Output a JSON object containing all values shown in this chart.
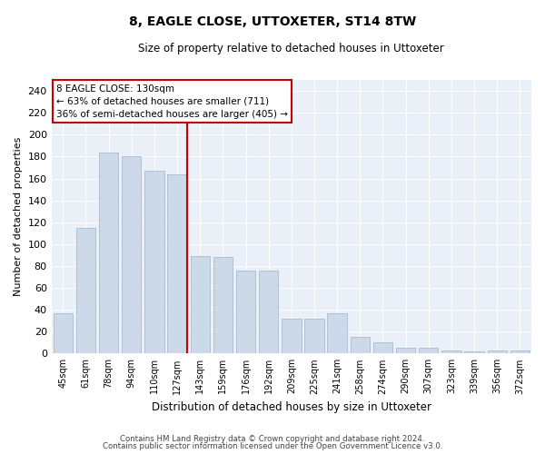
{
  "title1": "8, EAGLE CLOSE, UTTOXETER, ST14 8TW",
  "title2": "Size of property relative to detached houses in Uttoxeter",
  "xlabel": "Distribution of detached houses by size in Uttoxeter",
  "ylabel": "Number of detached properties",
  "categories": [
    "45sqm",
    "61sqm",
    "78sqm",
    "94sqm",
    "110sqm",
    "127sqm",
    "143sqm",
    "159sqm",
    "176sqm",
    "192sqm",
    "209sqm",
    "225sqm",
    "241sqm",
    "258sqm",
    "274sqm",
    "290sqm",
    "307sqm",
    "323sqm",
    "339sqm",
    "356sqm",
    "372sqm"
  ],
  "values": [
    37,
    115,
    184,
    180,
    167,
    164,
    89,
    88,
    76,
    76,
    32,
    32,
    37,
    15,
    10,
    5,
    5,
    3,
    2,
    3,
    3
  ],
  "bar_color": "#ccd9e8",
  "bar_edge_color": "#aabbcc",
  "highlight_label": "8 EAGLE CLOSE: 130sqm",
  "annotation_line1": "← 63% of detached houses are smaller (711)",
  "annotation_line2": "36% of semi-detached houses are larger (405) →",
  "annotation_box_color": "#ffffff",
  "annotation_box_edge": "#cc0000",
  "vline_color": "#cc0000",
  "vline_x": 5.42,
  "ylim": [
    0,
    250
  ],
  "yticks": [
    0,
    20,
    40,
    60,
    80,
    100,
    120,
    140,
    160,
    180,
    200,
    220,
    240
  ],
  "footer1": "Contains HM Land Registry data © Crown copyright and database right 2024.",
  "footer2": "Contains public sector information licensed under the Open Government Licence v3.0.",
  "bg_color": "#eaf0f7"
}
